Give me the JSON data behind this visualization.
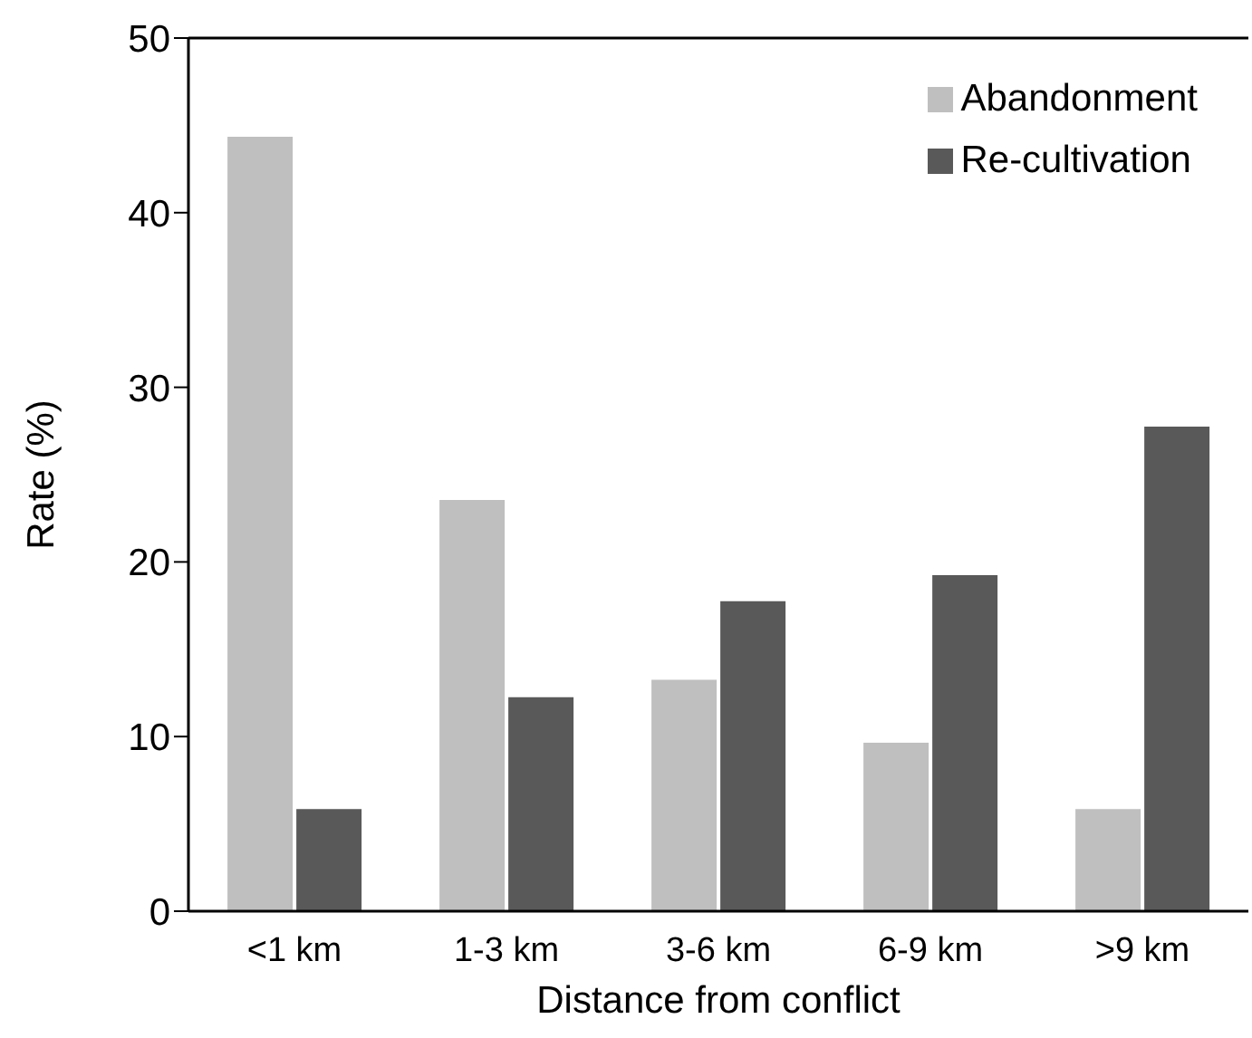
{
  "chart_data": {
    "type": "bar",
    "xlabel": "Distance from conflict",
    "ylabel": "Rate (%)",
    "categories": [
      "<1 km",
      "1-3 km",
      "3-6 km",
      "6-9 km",
      ">9 km"
    ],
    "series": [
      {
        "name": "Abandonment",
        "color": "#bfbfbf",
        "values": [
          44.4,
          23.6,
          13.3,
          9.7,
          5.9
        ]
      },
      {
        "name": "Re-cultivation",
        "color": "#595959",
        "values": [
          5.9,
          12.3,
          17.8,
          19.3,
          27.8
        ]
      }
    ],
    "ylim": [
      0,
      50
    ],
    "yticks": [
      0,
      10,
      20,
      30,
      40,
      50
    ],
    "grid": false,
    "legend": "top right"
  }
}
